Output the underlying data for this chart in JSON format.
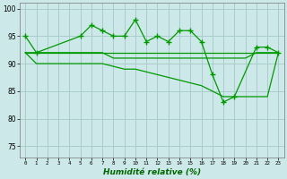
{
  "x": [
    0,
    1,
    2,
    3,
    4,
    5,
    6,
    7,
    8,
    9,
    10,
    11,
    12,
    13,
    14,
    15,
    16,
    17,
    18,
    19,
    20,
    21,
    22,
    23
  ],
  "jagged_x": [
    0,
    1,
    5,
    6,
    7,
    8,
    9,
    10,
    11,
    12,
    13,
    14,
    15,
    16,
    17,
    18,
    19,
    21,
    22,
    23
  ],
  "jagged_y": [
    95,
    92,
    95,
    97,
    96,
    95,
    95,
    98,
    94,
    95,
    94,
    96,
    96,
    94,
    88,
    83,
    84,
    93,
    93,
    92
  ],
  "flat_y": [
    92,
    92,
    92,
    92,
    92,
    92,
    92,
    92,
    92,
    92,
    92,
    92,
    92,
    92,
    92,
    92,
    92,
    92,
    92,
    92,
    92,
    92,
    92,
    92
  ],
  "mid_y": [
    92,
    92,
    92,
    92,
    92,
    92,
    92,
    92,
    91,
    91,
    91,
    91,
    91,
    91,
    91,
    91,
    91,
    91,
    91,
    91,
    91,
    92,
    92,
    92
  ],
  "decline_y": [
    92,
    90,
    90,
    90,
    90,
    90,
    90,
    90,
    89.5,
    89,
    89,
    88.5,
    88,
    87.5,
    87,
    86.5,
    86,
    85,
    84,
    84,
    84,
    84,
    84,
    92
  ],
  "ylim": [
    73,
    101
  ],
  "yticks": [
    75,
    80,
    85,
    90,
    95,
    100
  ],
  "xlim": [
    -0.5,
    23.5
  ],
  "xlabel": "Humidité relative (%)",
  "bg_color": "#cce8e8",
  "grid_color": "#aacccc",
  "line_color": "#009900",
  "marker": "+",
  "markersize": 4,
  "lw": 0.9
}
